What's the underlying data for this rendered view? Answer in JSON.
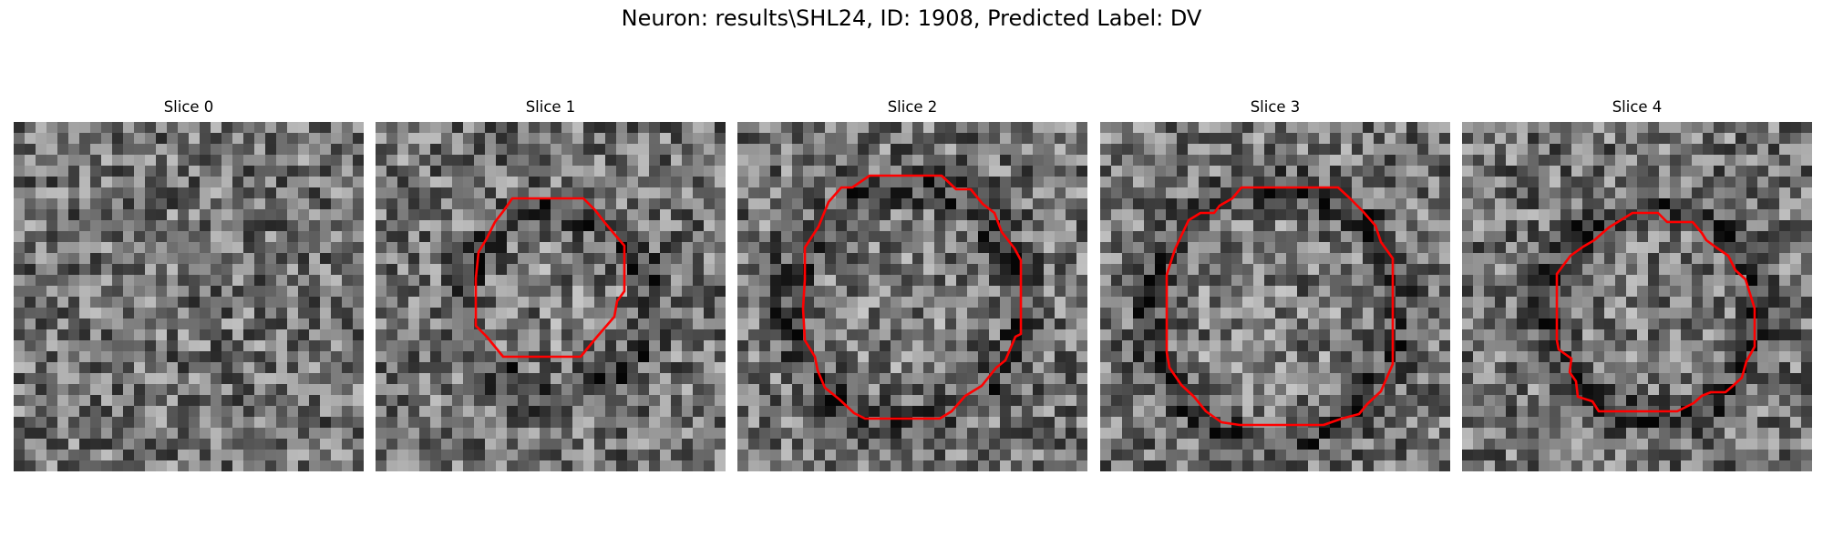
{
  "figure": {
    "title": "Neuron: results\\SHL24, ID: 1908, Predicted Label: DV"
  },
  "colors": {
    "background": "#ffffff",
    "contour": "#ff0000"
  },
  "panels": [
    {
      "title": "Slice 0",
      "has_contour": false
    },
    {
      "title": "Slice 1",
      "has_contour": true
    },
    {
      "title": "Slice 2",
      "has_contour": true
    },
    {
      "title": "Slice 3",
      "has_contour": true
    },
    {
      "title": "Slice 4",
      "has_contour": true
    }
  ]
}
